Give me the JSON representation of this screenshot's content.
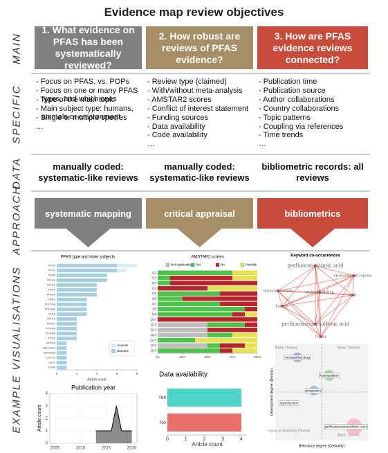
{
  "title": "Evidence map review objectives",
  "row_labels": [
    "MAIN",
    "SPECIFIC",
    "DATA",
    "APPROACH",
    "EXAMPLE VISUALISATIONS"
  ],
  "columns": [
    {
      "color": "#808080",
      "question": "1. What evidence on PFAS has been systematically reviewed?",
      "specific": [
        "- Focus on PFAS, vs. POPs",
        "- Focus on one or many PFAS types, and which ones",
        "- Type of the main topic",
        "- Main subject type: humans, animals or environment",
        "- Single or multiple species",
        "…"
      ],
      "data": "manually coded: systematic-like reviews",
      "approach": "systematic mapping"
    },
    {
      "color": "#a68f67",
      "question": "2. How robust are reviews of PFAS evidence?",
      "specific": [
        "- Review type (claimed)",
        "- With/without meta-analysis",
        "- AMSTAR2 scores",
        "- Conflict of interest statement",
        "- Funding sources",
        "- Data availability",
        "- Code availability",
        "…"
      ],
      "data": "manually coded: systematic-like reviews",
      "approach": "critical appraisal"
    },
    {
      "color": "#c84c3b",
      "question": "3. How are PFAS evidence reviews connected?",
      "specific": [
        "- Publication time",
        "- Publication source",
        "- Author collaborations",
        "- Country collaborations",
        "- Topic patterns",
        "- Coupling via references",
        "- Time trends",
        "…"
      ],
      "data": "bibliometric records: all reviews",
      "approach": "bibliometrics"
    }
  ],
  "keyword_network": {
    "title": "Keyword co-occurrences",
    "nodes": [
      "perfluorooctanoic acid",
      "environmental exposure",
      "systematic review",
      "unclassified drug",
      "male",
      "humans",
      "perfluorooctanesulfonic acid",
      "female"
    ]
  },
  "thematic_map": {
    "quadrants": [
      "Niche Themes",
      "Motor Themes",
      "Emerging or Declining Themes",
      "Basic Themes"
    ],
    "x_label": "Relevance degree (Centrality)",
    "y_label": "Development degree (Density)",
    "clusters": [
      "unclassified drug",
      "hypospadias",
      "pregnancy",
      "reproduction",
      "perfluorooctanesulfonic acid"
    ]
  },
  "chart_data": [
    {
      "type": "bar",
      "orientation": "horizontal",
      "title": "PFAS type and main subjects",
      "x_label": "Article count",
      "categories": [
        "PFOA",
        "PFOS",
        "PFNA",
        "PFHxS",
        "PFHxA",
        "PFDA",
        "PFHpA",
        "PFBS",
        "PFUnDA",
        "PFDoDA",
        "PFBA",
        "PFPeA",
        "PFHpS",
        "PFTrDA",
        "PFTeDA",
        "PFDS",
        "PFOSA",
        "MeFOSAA",
        "EtFOSAA",
        "6:2 FTS",
        "GenX",
        "F-53B"
      ],
      "series": [
        {
          "name": "Humans",
          "color": "#a9cfe0",
          "values": [
            6,
            6,
            5,
            5,
            4,
            4,
            4,
            3,
            3,
            3,
            3,
            2,
            2,
            2,
            2,
            2,
            1,
            1,
            1,
            1,
            1,
            1
          ]
        },
        {
          "name": "Animals",
          "color": "#dcebf3",
          "values": [
            2,
            1,
            0,
            0,
            0,
            0,
            0,
            0,
            0,
            0,
            0,
            0,
            0,
            0,
            0,
            0,
            0,
            0,
            0,
            0,
            0,
            0
          ]
        }
      ],
      "xlim": [
        0,
        8
      ],
      "xticks": [
        0,
        2,
        4,
        6,
        8
      ],
      "legend": "right"
    },
    {
      "type": "bar",
      "orientation": "horizontal",
      "title": "AMSTAR2 scores",
      "categories": [
        "Q1",
        "Q2",
        "Q3",
        "Q4",
        "Q5",
        "Q6",
        "Q7",
        "Q8",
        "Q9",
        "Q10",
        "Q11",
        "Q12",
        "Q13",
        "Q14",
        "Q15",
        "Q16"
      ],
      "series": [
        {
          "name": "Not Applicable",
          "color": "#bdbdbd",
          "values": [
            0,
            0,
            0,
            0,
            0,
            0,
            0,
            0,
            0,
            0,
            50,
            50,
            50,
            0,
            50,
            0
          ]
        },
        {
          "name": "Yes",
          "color": "#4cc247",
          "values": [
            75,
            12.5,
            12.5,
            0,
            62.5,
            25,
            62.5,
            87.5,
            75,
            0,
            37.5,
            0,
            25,
            37.5,
            12.5,
            62.5
          ]
        },
        {
          "name": "No",
          "color": "#b8262b",
          "values": [
            0,
            62.5,
            87.5,
            50,
            37.5,
            75,
            37.5,
            12.5,
            12.5,
            100,
            12.5,
            50,
            0,
            0,
            25,
            12.5
          ]
        },
        {
          "name": "Partially",
          "color": "#e6e24e",
          "values": [
            25,
            25,
            0,
            50,
            0,
            0,
            0,
            0,
            12.5,
            0,
            0,
            0,
            25,
            62.5,
            12.5,
            25
          ]
        }
      ],
      "xlim": [
        0,
        100
      ],
      "xticks": [
        {
          "value": 0,
          "label": "0%"
        },
        {
          "value": 25,
          "label": "25%"
        },
        {
          "value": 50,
          "label": "50%"
        },
        {
          "value": 75,
          "label": "75%"
        },
        {
          "value": 100,
          "label": "100%"
        }
      ],
      "legend": "top"
    },
    {
      "type": "area",
      "title": "Publication year",
      "y_label": "Article count",
      "x": [
        2013,
        2016,
        2017,
        2018,
        2020
      ],
      "values": [
        1,
        1,
        3,
        1,
        1
      ],
      "color": "#808080",
      "xlim": [
        2004,
        2021
      ],
      "xticks": [
        2005,
        2010,
        2015,
        2020
      ],
      "ylim": [
        0,
        4
      ],
      "yticks": [
        0,
        1,
        2,
        3,
        4
      ]
    },
    {
      "type": "bar",
      "orientation": "horizontal",
      "title": "Data availability",
      "x_label": "Article count",
      "categories": [
        "Yes",
        "No"
      ],
      "colors": [
        "#4dd4c6",
        "#e96f6a"
      ],
      "series": [
        {
          "values": [
            4,
            4
          ]
        }
      ],
      "xlim": [
        0,
        4.3
      ],
      "xticks": [
        0,
        1,
        2,
        3,
        4
      ]
    }
  ]
}
